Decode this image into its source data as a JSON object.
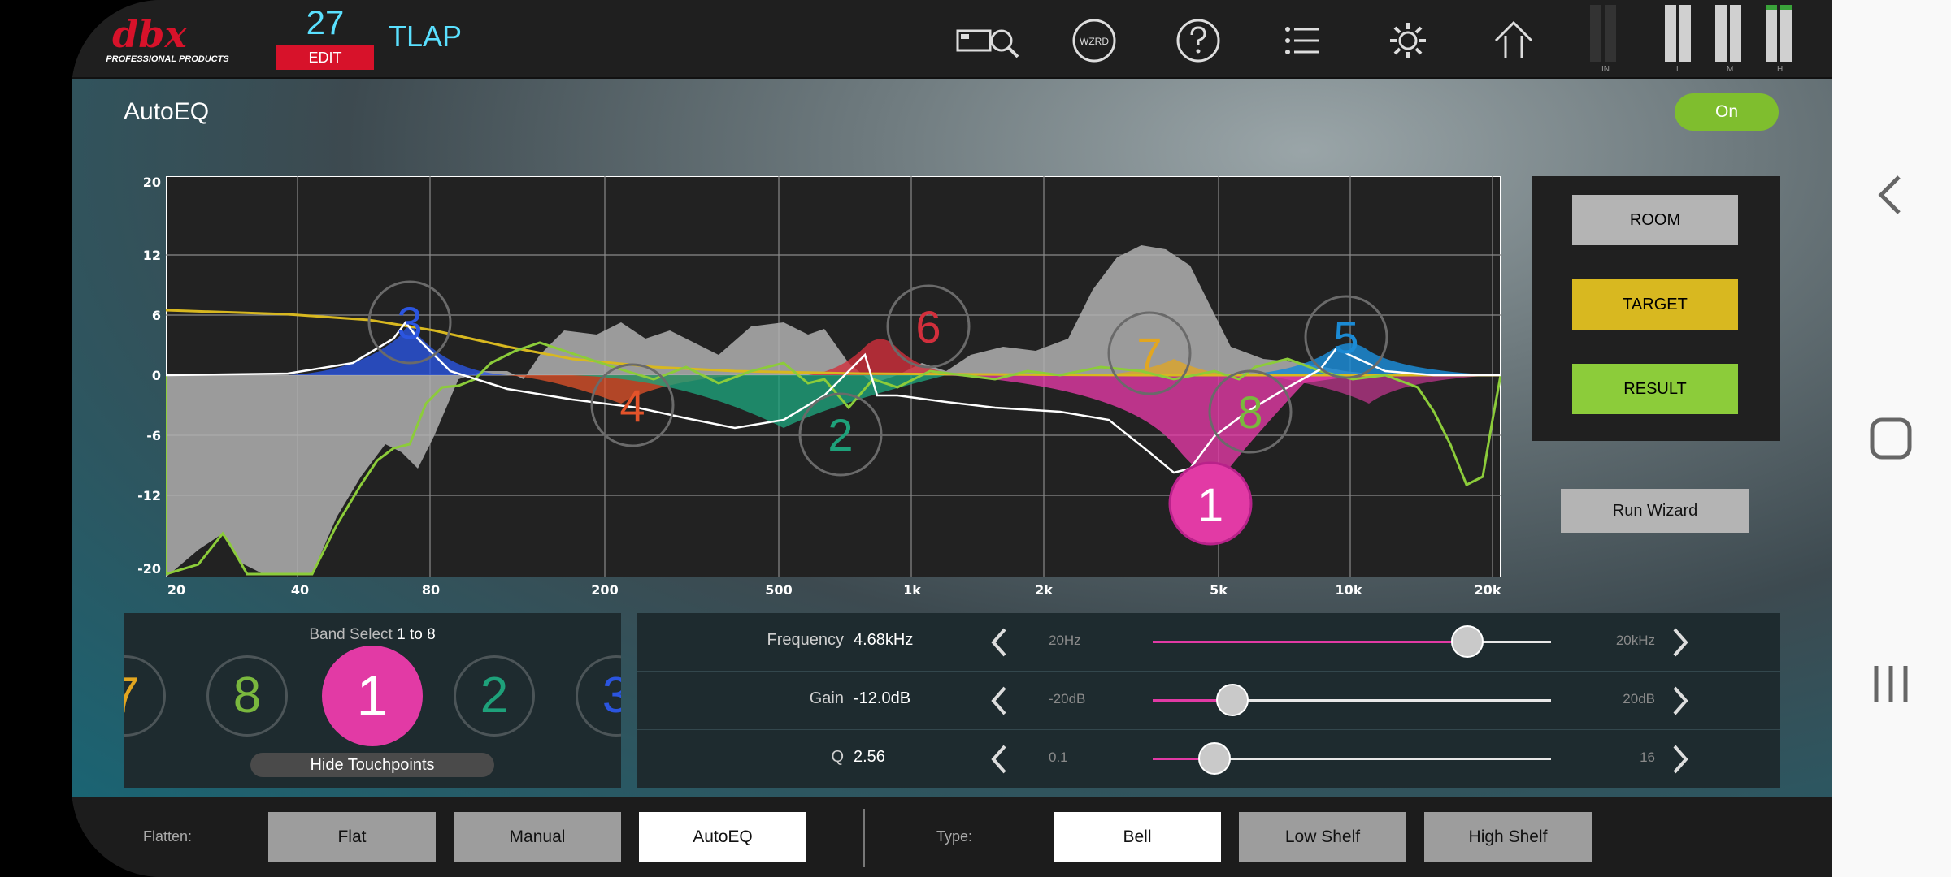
{
  "header": {
    "logo_text": "dbx",
    "logo_subtext": "PROFESSIONAL PRODUCTS",
    "preset_number": "27",
    "edit_label": "EDIT",
    "preset_name": "TLAP",
    "icons": [
      "rta-mic-icon",
      "wizard-icon",
      "help-icon",
      "list-icon",
      "settings-icon",
      "home-icon"
    ],
    "wizard_icon_text": "WZRD",
    "meters": {
      "labels": [
        "IN",
        "L",
        "M",
        "H"
      ]
    }
  },
  "autoeq": {
    "title": "AutoEQ",
    "toggle_label": "On"
  },
  "graph": {
    "y_ticks": [
      "20",
      "12",
      "6",
      "0",
      "-6",
      "-12",
      "-20"
    ],
    "x_ticks": [
      "20",
      "40",
      "80",
      "200",
      "500",
      "1k",
      "2k",
      "5k",
      "10k",
      "20k"
    ],
    "band_markers": [
      "1",
      "2",
      "3",
      "4",
      "5",
      "6",
      "7",
      "8"
    ],
    "colors": {
      "room": "#b4b4b4",
      "target": "#d8b820",
      "result": "#7fbe2e",
      "band1": "#e23aa5",
      "band2": "#1ea17a",
      "band3": "#2b55e0",
      "band4": "#e3532a",
      "band5": "#1b8ad4",
      "band6": "#d22f3c",
      "band7": "#e2a620",
      "band8": "#7ab83e"
    }
  },
  "legend": {
    "room_label": "ROOM",
    "target_label": "TARGET",
    "result_label": "RESULT",
    "run_wizard_label": "Run Wizard"
  },
  "band_select": {
    "title_prefix": "Band Select",
    "title_range": "1 to 8",
    "visible_bands": [
      "7",
      "8",
      "1",
      "2",
      "3"
    ],
    "selected_band": "1",
    "hide_touchpoints_label": "Hide Touchpoints"
  },
  "params": {
    "frequency": {
      "label": "Frequency",
      "value": "4.68kHz",
      "min": "20Hz",
      "max": "20kHz",
      "position": 0.79
    },
    "gain": {
      "label": "Gain",
      "value": "-12.0dB",
      "min": "-20dB",
      "max": "20dB",
      "position": 0.2
    },
    "q": {
      "label": "Q",
      "value": "2.56",
      "min": "0.1",
      "max": "16",
      "position": 0.155
    }
  },
  "bottom": {
    "flatten_label": "Flatten:",
    "flatten_options": [
      "Flat",
      "Manual",
      "AutoEQ"
    ],
    "flatten_selected": "AutoEQ",
    "type_label": "Type:",
    "type_options": [
      "Bell",
      "Low Shelf",
      "High Shelf"
    ],
    "type_selected": "Bell"
  }
}
